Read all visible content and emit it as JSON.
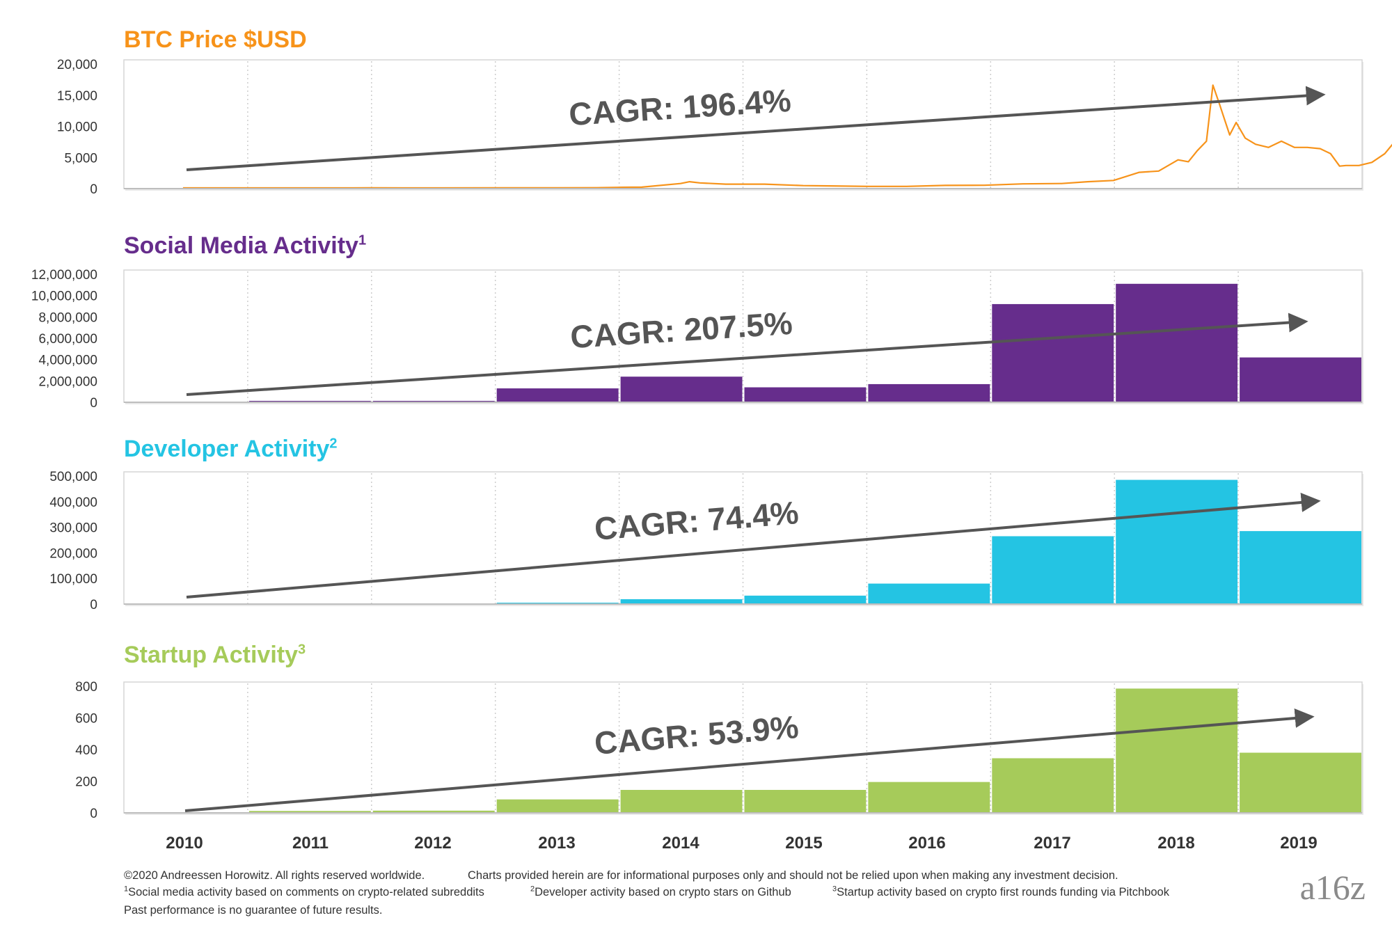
{
  "chart_data": [
    {
      "type": "line",
      "title": "BTC Price $USD",
      "title_superscript": "",
      "color": "#F7931A",
      "x_categories": [
        "2010",
        "2011",
        "2012",
        "2013",
        "2014",
        "2015",
        "2016",
        "2017",
        "2018",
        "2019"
      ],
      "ylim": [
        0,
        20000
      ],
      "y_ticks": [
        0,
        5000,
        10000,
        15000,
        20000
      ],
      "y_tick_labels": [
        "0",
        "5,000",
        "10,000",
        "15,000",
        "20,000"
      ],
      "series": [
        {
          "x": [
            2010.0,
            2010.5,
            2011.0,
            2011.45,
            2011.7,
            2012.0,
            2012.5,
            2012.9,
            2013.2,
            2013.4,
            2013.55,
            2013.85,
            2013.92,
            2014.0,
            2014.2,
            2014.5,
            2014.8,
            2015.0,
            2015.3,
            2015.6,
            2015.9,
            2016.2,
            2016.5,
            2016.8,
            2017.0,
            2017.2,
            2017.4,
            2017.55,
            2017.7,
            2017.78,
            2017.85,
            2017.92,
            2017.97,
            2018.02,
            2018.06,
            2018.1,
            2018.15,
            2018.22,
            2018.3,
            2018.4,
            2018.5,
            2018.6,
            2018.7,
            2018.8,
            2018.88,
            2018.95,
            2019.0,
            2019.1,
            2019.2,
            2019.3,
            2019.4,
            2019.45,
            2019.5,
            2019.58,
            2019.65,
            2019.72,
            2019.8,
            2019.88,
            2019.95
          ],
          "y": [
            0,
            0,
            1,
            15,
            4,
            5,
            8,
            12,
            30,
            100,
            120,
            700,
            1000,
            800,
            600,
            600,
            370,
            320,
            250,
            250,
            400,
            420,
            650,
            700,
            1000,
            1200,
            2500,
            2700,
            4500,
            4200,
            6000,
            7500,
            16500,
            13500,
            11000,
            8500,
            10500,
            8000,
            7000,
            6500,
            7500,
            6500,
            6500,
            6300,
            5500,
            3500,
            3600,
            3600,
            4100,
            5500,
            8000,
            11000,
            9500,
            10000,
            9300,
            8500,
            9000,
            7500,
            7200
          ]
        }
      ],
      "annotation": "CAGR: 196.4%"
    },
    {
      "type": "bar",
      "title": "Social Media Activity",
      "title_superscript": "1",
      "color": "#662D8C",
      "categories": [
        "2010",
        "2011",
        "2012",
        "2013",
        "2014",
        "2015",
        "2016",
        "2017",
        "2018",
        "2019"
      ],
      "values": [
        0,
        30000,
        60000,
        1300000,
        2400000,
        1400000,
        1700000,
        9200000,
        11100000,
        4200000
      ],
      "ylim": [
        0,
        12000000
      ],
      "y_ticks": [
        0,
        2000000,
        4000000,
        6000000,
        8000000,
        10000000,
        12000000
      ],
      "y_tick_labels": [
        "0",
        "2,000,000",
        "4,000,000",
        "6,000,000",
        "8,000,000",
        "10,000,000",
        "12,000,000"
      ],
      "annotation": "CAGR: 207.5%"
    },
    {
      "type": "bar",
      "title": "Developer Activity",
      "title_superscript": "2",
      "color": "#24C4E3",
      "categories": [
        "2010",
        "2011",
        "2012",
        "2013",
        "2014",
        "2015",
        "2016",
        "2017",
        "2018",
        "2019"
      ],
      "values": [
        0,
        0,
        0,
        5000,
        19000,
        33000,
        80000,
        265000,
        485000,
        285000
      ],
      "ylim": [
        0,
        500000
      ],
      "y_ticks": [
        0,
        100000,
        200000,
        300000,
        400000,
        500000
      ],
      "y_tick_labels": [
        "0",
        "100,000",
        "200,000",
        "300,000",
        "400,000",
        "500,000"
      ],
      "annotation": "CAGR: 74.4%"
    },
    {
      "type": "bar",
      "title": "Startup Activity",
      "title_superscript": "3",
      "color": "#A6CB5A",
      "categories": [
        "2010",
        "2011",
        "2012",
        "2013",
        "2014",
        "2015",
        "2016",
        "2017",
        "2018",
        "2019"
      ],
      "values": [
        0,
        12,
        14,
        85,
        145,
        145,
        195,
        345,
        785,
        380
      ],
      "ylim": [
        0,
        800
      ],
      "y_ticks": [
        0,
        200,
        400,
        600,
        800
      ],
      "y_tick_labels": [
        "0",
        "200",
        "400",
        "600",
        "800"
      ],
      "annotation": "CAGR: 53.9%"
    }
  ],
  "x_axis_labels": [
    "2010",
    "2011",
    "2012",
    "2013",
    "2014",
    "2015",
    "2016",
    "2017",
    "2018",
    "2019"
  ],
  "footer": {
    "copyright": "©2020 Andreessen Horowitz. All rights reserved worldwide.",
    "disclaimer": "Charts provided herein are for informational purposes only and should not be relied upon when making any investment decision.",
    "footnote1_mark": "1",
    "footnote1": "Social media activity based on comments on crypto-related subreddits",
    "footnote2_mark": "2",
    "footnote2": "Developer activity based on crypto stars on Github",
    "footnote3_mark": "3",
    "footnote3": "Startup activity based on crypto first rounds funding via Pitchbook",
    "past_performance": "Past performance is no guarantee of future results."
  },
  "logo": "a16z",
  "colors": {
    "arrow": "#555555",
    "grid": "#cccccc",
    "panel_border": "#d6d6d6",
    "axis_text": "#333333"
  }
}
